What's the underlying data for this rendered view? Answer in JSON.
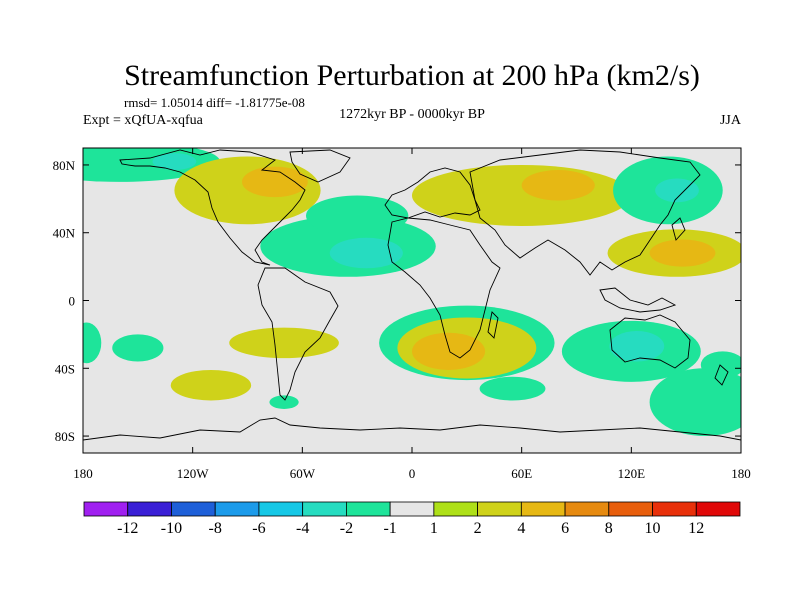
{
  "chart_data": {
    "type": "heatmap",
    "title": "Streamfunction Perturbation at 200 hPa (km2/s)",
    "stats_line": "rmsd= 1.05014 diff= -1.81775e-08",
    "period": "1272kyr BP - 0000kyr BP",
    "experiment": "Expt = xQfUA-xqfua",
    "season": "JJA",
    "x_ticks": [
      "180",
      "120W",
      "60W",
      "0",
      "60E",
      "120E",
      "180"
    ],
    "y_ticks": [
      "80N",
      "40N",
      "0",
      "40S",
      "80S"
    ],
    "xlim": [
      -180,
      180
    ],
    "ylim": [
      -90,
      90
    ],
    "colorbar": {
      "levels": [
        -12,
        -10,
        -8,
        -6,
        -4,
        -2,
        -1,
        1,
        2,
        4,
        6,
        8,
        10,
        12
      ],
      "labels": [
        "-12",
        "-10",
        "-8",
        "-6",
        "-4",
        "-2",
        "-1",
        "1",
        "2",
        "4",
        "6",
        "8",
        "10",
        "12"
      ],
      "colors": [
        "#a020f0",
        "#3a1fd6",
        "#1e5fd8",
        "#1c9bea",
        "#16c8e6",
        "#26dcc0",
        "#1ee49a",
        "#e6e6e6",
        "#aee018",
        "#cfd21a",
        "#e6b814",
        "#e68a10",
        "#e85e0c",
        "#e8300a",
        "#e00808"
      ]
    },
    "regions": [
      {
        "label": "N Pacific Arctic negative",
        "level": -2,
        "lon": -160,
        "lat": 82,
        "rlon": 55,
        "rlat": 12
      },
      {
        "label": "Alaska negative core",
        "level": -4,
        "lon": -130,
        "lat": 82,
        "rlon": 12,
        "rlat": 5
      },
      {
        "label": "Canada positive",
        "level": 2,
        "lon": -90,
        "lat": 65,
        "rlon": 40,
        "rlat": 20
      },
      {
        "label": "Canada positive core",
        "level": 4,
        "lon": -75,
        "lat": 70,
        "rlon": 18,
        "rlat": 9
      },
      {
        "label": "Mid Atlantic negative",
        "level": -2,
        "lon": -35,
        "lat": 32,
        "rlon": 48,
        "rlat": 18
      },
      {
        "label": "Mid Atlantic negative core",
        "level": -4,
        "lon": -25,
        "lat": 28,
        "rlon": 20,
        "rlat": 9
      },
      {
        "label": "North Atlantic negative",
        "level": -2,
        "lon": -30,
        "lat": 50,
        "rlon": 28,
        "rlat": 12
      },
      {
        "label": "Europe Siberia positive",
        "level": 2,
        "lon": 60,
        "lat": 62,
        "rlon": 60,
        "rlat": 18
      },
      {
        "label": "Siberia positive core",
        "level": 4,
        "lon": 80,
        "lat": 68,
        "rlon": 20,
        "rlat": 9
      },
      {
        "label": "East Asia negative",
        "level": -2,
        "lon": 140,
        "lat": 65,
        "rlon": 30,
        "rlat": 20
      },
      {
        "label": "East Asia negative core",
        "level": -4,
        "lon": 145,
        "lat": 65,
        "rlon": 12,
        "rlat": 7
      },
      {
        "label": "N Pacific positive",
        "level": 2,
        "lon": 145,
        "lat": 28,
        "rlon": 38,
        "rlat": 14
      },
      {
        "label": "N Pacific positive core",
        "level": 4,
        "lon": 148,
        "lat": 28,
        "rlon": 18,
        "rlat": 8
      },
      {
        "label": "S Pacific negative",
        "level": -2,
        "lon": -150,
        "lat": -28,
        "rlon": 14,
        "rlat": 8
      },
      {
        "label": "SE Pacific positive",
        "level": 2,
        "lon": -110,
        "lat": -50,
        "rlon": 22,
        "rlat": 9
      },
      {
        "label": "Drake negative",
        "level": -2,
        "lon": -70,
        "lat": -60,
        "rlon": 8,
        "rlat": 4
      },
      {
        "label": "S Atlantic positive",
        "level": 2,
        "lon": -70,
        "lat": -25,
        "rlon": 30,
        "rlat": 9
      },
      {
        "label": "Southern Africa negative",
        "level": -2,
        "lon": 30,
        "lat": -25,
        "rlon": 48,
        "rlat": 22
      },
      {
        "label": "Southern Africa positive",
        "level": 2,
        "lon": 30,
        "lat": -28,
        "rlon": 38,
        "rlat": 18
      },
      {
        "label": "Southern Africa positive core",
        "level": 4,
        "lon": 20,
        "lat": -30,
        "rlon": 20,
        "rlat": 11
      },
      {
        "label": "S Indian Ocean negative",
        "level": -2,
        "lon": 55,
        "lat": -52,
        "rlon": 18,
        "rlat": 7
      },
      {
        "label": "Australia negative",
        "level": -2,
        "lon": 120,
        "lat": -30,
        "rlon": 38,
        "rlat": 18
      },
      {
        "label": "Australia negative core",
        "level": -4,
        "lon": 123,
        "lat": -27,
        "rlon": 15,
        "rlat": 9
      },
      {
        "label": "Dateline south negative",
        "level": -2,
        "lon": 170,
        "lat": -38,
        "rlon": 12,
        "rlat": 8
      },
      {
        "label": "SW Pacific negative",
        "level": -2,
        "lon": 160,
        "lat": -60,
        "rlon": 30,
        "rlat": 20
      },
      {
        "label": "Tropical Pacific negative",
        "level": -2,
        "lon": -178,
        "lat": -25,
        "rlon": 8,
        "rlat": 12
      }
    ]
  }
}
